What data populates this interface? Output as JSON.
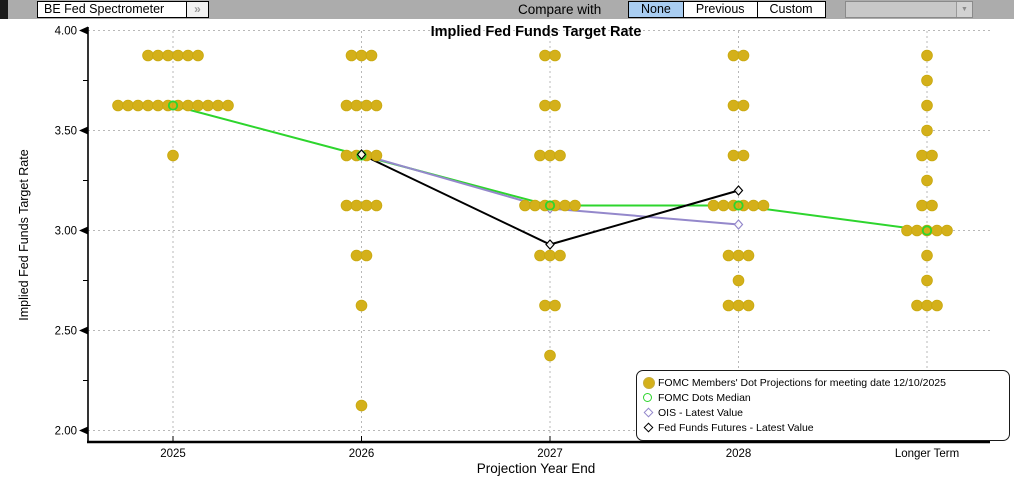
{
  "toolbar": {
    "selector": "BE Fed Spectrometer",
    "expand_button": "»",
    "compare_label": "Compare with",
    "compare_none": "None",
    "compare_previous": "Previous",
    "compare_custom": "Custom",
    "compare_dropdown_value": "",
    "selected_color": "#a9cdf1"
  },
  "chart_data": {
    "type": "scatter",
    "title": "Implied Fed Funds Target Rate",
    "xlabel": "Projection Year End",
    "ylabel": "Implied Fed Funds Target Rate",
    "categories": [
      "2025",
      "2026",
      "2027",
      "2028",
      "Longer Term"
    ],
    "ylim": [
      2.0,
      4.0
    ],
    "yticks": [
      {
        "label": "4.00",
        "value": 4.0
      },
      {
        "label": "3.50",
        "value": 3.5
      },
      {
        "label": "3.00",
        "value": 3.0
      },
      {
        "label": "2.50",
        "value": 2.5
      },
      {
        "label": "2.00",
        "value": 2.0
      }
    ],
    "minor_ticks": [
      3.75,
      3.25,
      2.75,
      2.25
    ],
    "grid": "dashed both axes",
    "legend_position": "bottom-right",
    "series": [
      {
        "name": "FOMC Members' Dot Projections for meeting date 12/10/2025",
        "type": "dot-histogram",
        "marker": "filled-circle",
        "color": "#d4b01a",
        "dots": [
          {
            "category": "2025",
            "levels": [
              {
                "rate": 3.875,
                "count": 6
              },
              {
                "rate": 3.625,
                "count": 12
              },
              {
                "rate": 3.375,
                "count": 1
              }
            ]
          },
          {
            "category": "2026",
            "levels": [
              {
                "rate": 3.875,
                "count": 3
              },
              {
                "rate": 3.625,
                "count": 4
              },
              {
                "rate": 3.375,
                "count": 4
              },
              {
                "rate": 3.125,
                "count": 4
              },
              {
                "rate": 2.875,
                "count": 2
              },
              {
                "rate": 2.625,
                "count": 1
              },
              {
                "rate": 2.125,
                "count": 1
              }
            ]
          },
          {
            "category": "2027",
            "levels": [
              {
                "rate": 3.875,
                "count": 2
              },
              {
                "rate": 3.625,
                "count": 2
              },
              {
                "rate": 3.375,
                "count": 3
              },
              {
                "rate": 3.125,
                "count": 6
              },
              {
                "rate": 2.875,
                "count": 3
              },
              {
                "rate": 2.625,
                "count": 2
              },
              {
                "rate": 2.375,
                "count": 1
              }
            ]
          },
          {
            "category": "2028",
            "levels": [
              {
                "rate": 3.875,
                "count": 2
              },
              {
                "rate": 3.625,
                "count": 2
              },
              {
                "rate": 3.375,
                "count": 2
              },
              {
                "rate": 3.125,
                "count": 6
              },
              {
                "rate": 2.875,
                "count": 3
              },
              {
                "rate": 2.75,
                "count": 1
              },
              {
                "rate": 2.625,
                "count": 3
              }
            ]
          },
          {
            "category": "Longer Term",
            "levels": [
              {
                "rate": 3.875,
                "count": 1
              },
              {
                "rate": 3.75,
                "count": 1
              },
              {
                "rate": 3.625,
                "count": 1
              },
              {
                "rate": 3.5,
                "count": 1
              },
              {
                "rate": 3.375,
                "count": 2
              },
              {
                "rate": 3.25,
                "count": 1
              },
              {
                "rate": 3.125,
                "count": 2
              },
              {
                "rate": 3.0,
                "count": 5
              },
              {
                "rate": 2.875,
                "count": 1
              },
              {
                "rate": 2.75,
                "count": 1
              },
              {
                "rate": 2.625,
                "count": 3
              }
            ]
          }
        ]
      },
      {
        "name": "FOMC Dots Median",
        "type": "line",
        "marker": "open-circle",
        "color": "#2dd52d",
        "points": [
          {
            "category": "2025",
            "value": 3.625
          },
          {
            "category": "2026",
            "value": 3.375
          },
          {
            "category": "2027",
            "value": 3.125
          },
          {
            "category": "2028",
            "value": 3.125
          },
          {
            "category": "Longer Term",
            "value": 3.0
          }
        ]
      },
      {
        "name": "OIS - Latest Value",
        "type": "line",
        "marker": "open-diamond",
        "color": "#9488cb",
        "points": [
          {
            "category": "2026",
            "value": 3.38
          },
          {
            "category": "2027",
            "value": 3.11
          },
          {
            "category": "2028",
            "value": 3.03
          }
        ]
      },
      {
        "name": "Fed Funds Futures - Latest Value",
        "type": "line",
        "marker": "open-diamond",
        "color": "#000000",
        "points": [
          {
            "category": "2026",
            "value": 3.38
          },
          {
            "category": "2027",
            "value": 2.93
          },
          {
            "category": "2028",
            "value": 3.2
          }
        ]
      }
    ]
  }
}
